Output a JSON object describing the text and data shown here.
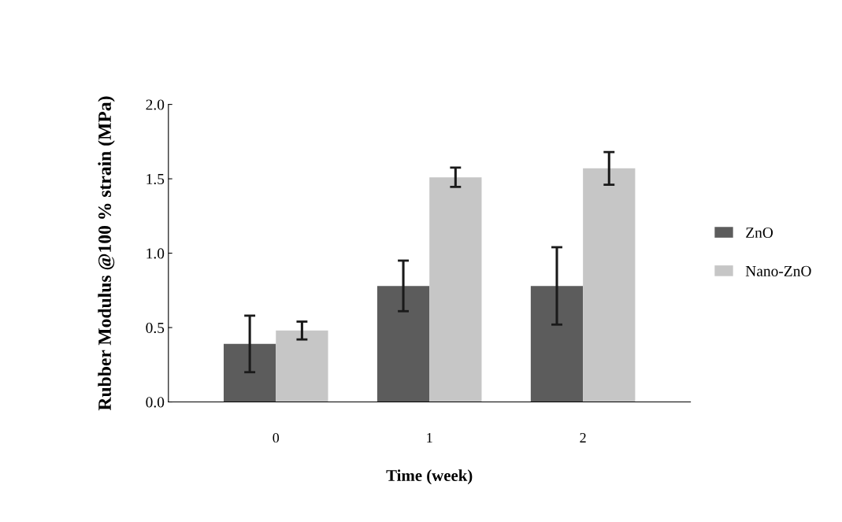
{
  "chart_data": {
    "type": "bar",
    "xlabel": "Time (week)",
    "ylabel": "Rubber Modulus @100 % strain (MPa)",
    "categories": [
      "0",
      "1",
      "2"
    ],
    "series": [
      {
        "name": "ZnO",
        "color": "#5c5c5c",
        "values": [
          0.39,
          0.78,
          0.78
        ],
        "errors": [
          0.19,
          0.17,
          0.26
        ]
      },
      {
        "name": "Nano-ZnO",
        "color": "#c6c6c6",
        "values": [
          0.48,
          1.51,
          1.57
        ],
        "errors": [
          0.06,
          0.065,
          0.11
        ]
      }
    ],
    "ylim": [
      0,
      2.0
    ],
    "yticks": [
      {
        "value": 0,
        "label": "0.0"
      },
      {
        "value": 0.5,
        "label": "0.5"
      },
      {
        "value": 1.0,
        "label": "1.0"
      },
      {
        "value": 1.5,
        "label": "1.5"
      },
      {
        "value": 2.0,
        "label": "2.0"
      }
    ],
    "grid": false,
    "legend": "right"
  }
}
